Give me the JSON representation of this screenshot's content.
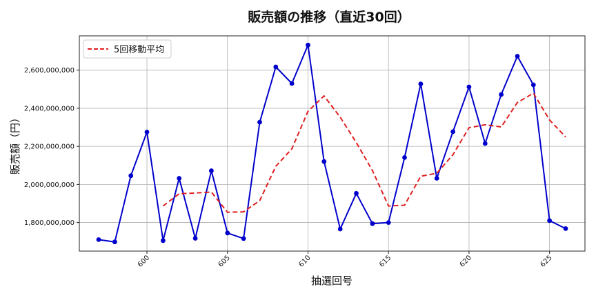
{
  "chart_data": {
    "type": "line",
    "title": "販売額の推移（直近30回）",
    "xlabel": "抽選回号",
    "ylabel": "販売額（円）",
    "xlim": [
      595.8,
      627.2
    ],
    "ylim": [
      1650000000,
      2780000000
    ],
    "xticks": [
      600,
      605,
      610,
      615,
      620,
      625
    ],
    "yticks": [
      1800000000,
      2000000000,
      2200000000,
      2400000000,
      2600000000
    ],
    "ytick_labels": [
      "1,800,000,000",
      "2,000,000,000",
      "2,200,000,000",
      "2,400,000,000",
      "2,600,000,000"
    ],
    "grid": true,
    "legend": {
      "position": "top-left",
      "entries": [
        "5回移動平均"
      ]
    },
    "x": [
      597,
      598,
      599,
      600,
      601,
      602,
      603,
      604,
      605,
      606,
      607,
      608,
      609,
      610,
      611,
      612,
      613,
      614,
      615,
      616,
      617,
      618,
      619,
      620,
      621,
      622,
      623,
      624,
      625,
      626
    ],
    "series": [
      {
        "style": "solid-marker",
        "color": "#0000cc",
        "values": [
          1710000000,
          1698000000,
          2046000000,
          2275000000,
          1705000000,
          2032000000,
          1717000000,
          2072000000,
          1745000000,
          1716000000,
          2327000000,
          2617000000,
          2530000000,
          2732000000,
          2120000000,
          1766000000,
          1953000000,
          1794000000,
          1800000000,
          2141000000,
          2528000000,
          2032000000,
          2277000000,
          2512000000,
          2215000000,
          2472000000,
          2673000000,
          2523000000,
          1810000000,
          1768000000
        ]
      },
      {
        "name": "5回移動平均",
        "style": "dashed",
        "color": "#e02020",
        "values": [
          null,
          null,
          null,
          null,
          1887000000,
          1951000000,
          1955000000,
          1960000000,
          1854000000,
          1856000000,
          1915000000,
          2095000000,
          2187000000,
          2384000000,
          2465000000,
          2353000000,
          2220000000,
          2073000000,
          1887000000,
          1891000000,
          2043000000,
          2059000000,
          2156000000,
          2298000000,
          2313000000,
          2302000000,
          2430000000,
          2479000000,
          2339000000,
          2249000000
        ]
      }
    ]
  }
}
